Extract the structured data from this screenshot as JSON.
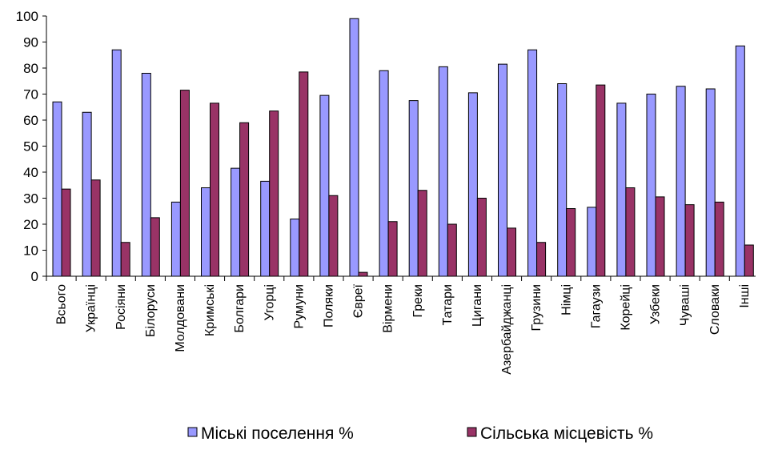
{
  "chart_data": {
    "type": "bar",
    "title": "",
    "xlabel": "",
    "ylabel": "",
    "ylim": [
      0,
      100
    ],
    "yticks": [
      0,
      10,
      20,
      30,
      40,
      50,
      60,
      70,
      80,
      90,
      100
    ],
    "grid": false,
    "legend_position": "bottom",
    "categories": [
      "Всього",
      "Українці",
      "Росіяни",
      "Білоруси",
      "Молдовани",
      "Кримські",
      "Болгари",
      "Угорці",
      "Румуни",
      "Поляки",
      "Євреї",
      "Вірмени",
      "Греки",
      "Татари",
      "Цигани",
      "Азербайджанці",
      "Грузини",
      "Німці",
      "Гагаузи",
      "Корейці",
      "Узбеки",
      "Чуваші",
      "Словаки",
      "Інші"
    ],
    "series": [
      {
        "name": "Міські поселення %",
        "color": "#9999ff",
        "values": [
          67,
          63,
          87,
          78,
          28.5,
          34,
          41.5,
          36.5,
          22,
          69.5,
          99,
          79,
          67.5,
          80.5,
          70.5,
          81.5,
          87,
          74,
          26.5,
          66.5,
          70,
          73,
          72,
          88.5
        ]
      },
      {
        "name": "Сільська місцевість %",
        "color": "#993366",
        "values": [
          33.5,
          37,
          13,
          22.5,
          71.5,
          66.5,
          59,
          63.5,
          78.5,
          31,
          1.5,
          21,
          33,
          20,
          30,
          18.5,
          13,
          26,
          73.5,
          34,
          30.5,
          27.5,
          28.5,
          12
        ]
      }
    ]
  }
}
